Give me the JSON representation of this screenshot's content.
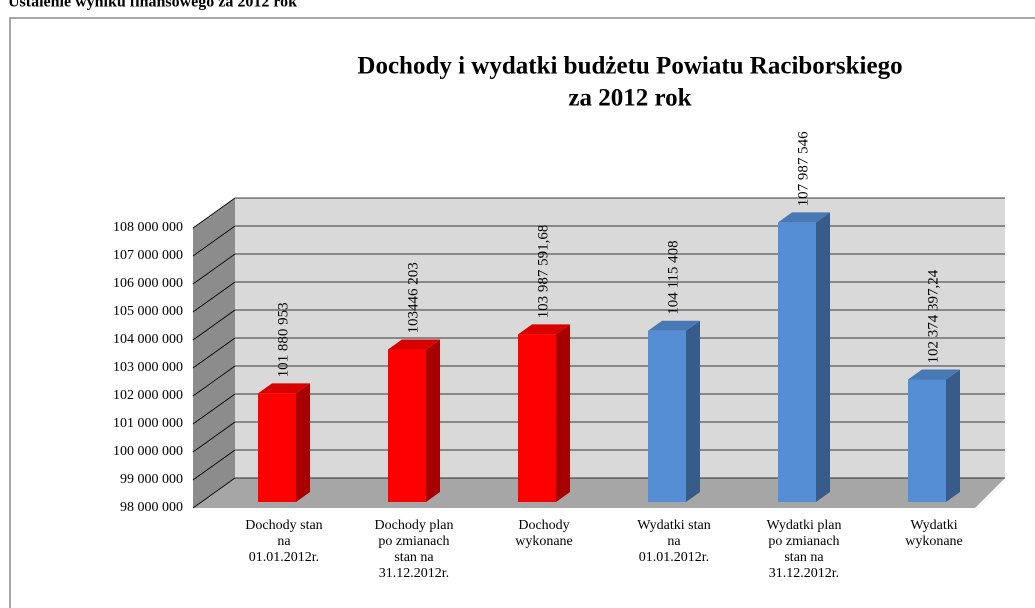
{
  "heading": "Ustalenie wyniku finansowego za 2012 rok",
  "chart_data": {
    "type": "bar3d",
    "title": "Dochody i wydatki budżetu Powiatu Raciborskiego",
    "subtitle": "za 2012 rok",
    "categories": [
      "Dochody stan\nna\n01.01.2012r.",
      "Dochody plan\npo zmianach\nstan na\n31.12.2012r.",
      "Dochody\nwykonane",
      "Wydatki stan\nna\n01.01.2012r.",
      "Wydatki plan\npo zmianach\nstan na\n31.12.2012r.",
      "Wydatki\nwykonane"
    ],
    "values": [
      101880953,
      103446203,
      103987591.68,
      104115408,
      107987546,
      102374397.24
    ],
    "value_labels": [
      "101 880 953",
      "103446 203",
      "103 987 591,68",
      "104 115 408",
      "107 987 546",
      "102 374 397,24"
    ],
    "colors": [
      "#ff0000",
      "#ff0000",
      "#ff0000",
      "#558ed5",
      "#558ed5",
      "#558ed5"
    ],
    "ylim": [
      98000000,
      108000000
    ],
    "yticks": [
      {
        "value": 98000000,
        "label": "98 000 000"
      },
      {
        "value": 99000000,
        "label": "99 000 000"
      },
      {
        "value": 100000000,
        "label": "100 000 000"
      },
      {
        "value": 101000000,
        "label": "101 000 000"
      },
      {
        "value": 102000000,
        "label": "102 000 000"
      },
      {
        "value": 103000000,
        "label": "103 000 000"
      },
      {
        "value": 104000000,
        "label": "104 000 000"
      },
      {
        "value": 105000000,
        "label": "105 000 000"
      },
      {
        "value": 106000000,
        "label": "106 000 000"
      },
      {
        "value": 107000000,
        "label": "107 000 000"
      },
      {
        "value": 108000000,
        "label": "108 000 000"
      }
    ],
    "grid": true
  }
}
